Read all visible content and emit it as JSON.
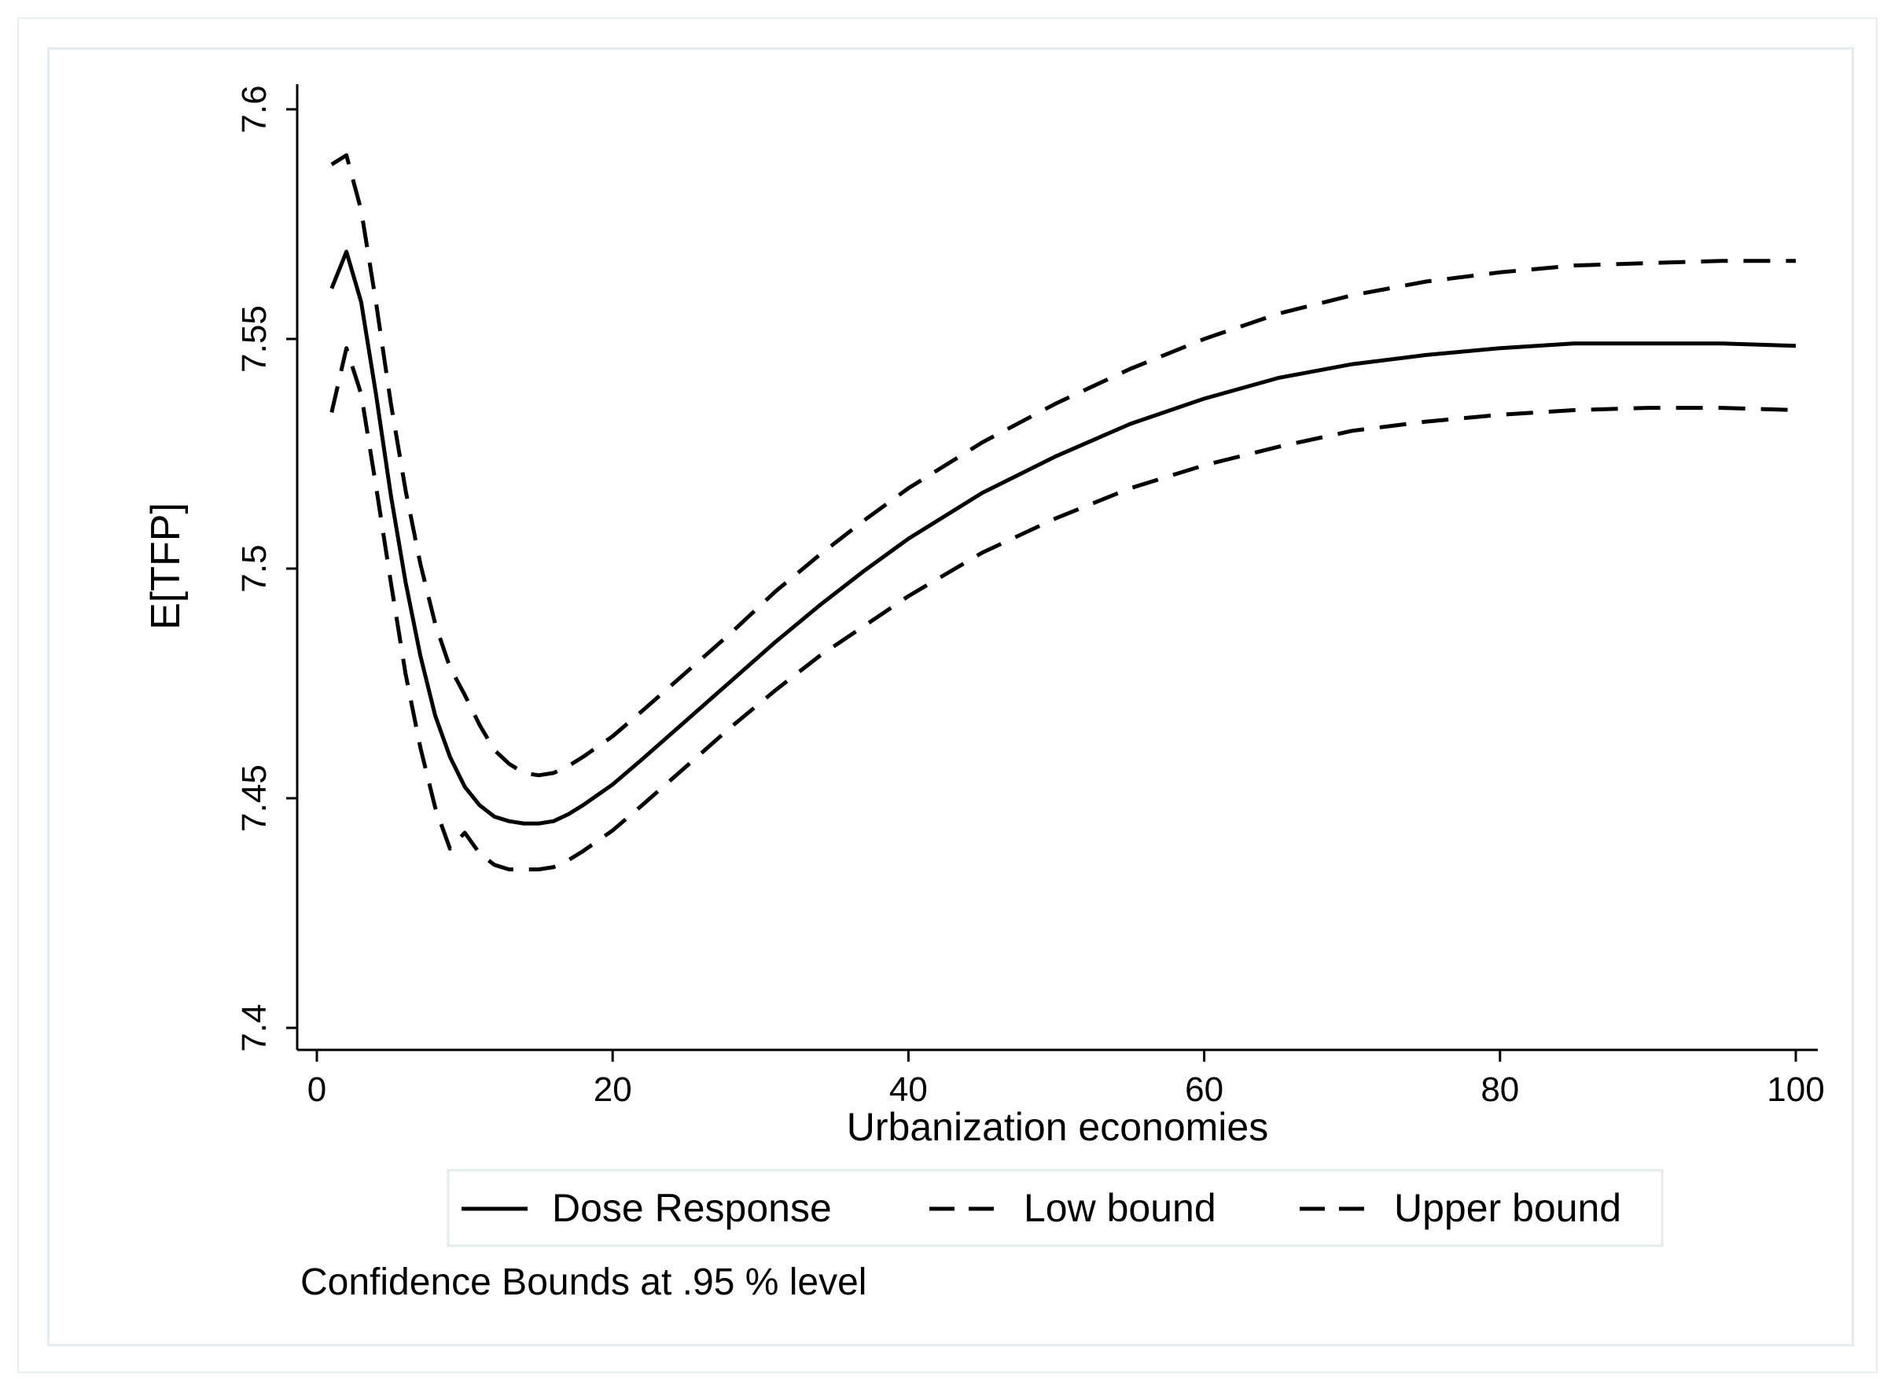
{
  "chart_data": {
    "type": "line",
    "title": "",
    "xlabel": "Urbanization economies",
    "ylabel": "E[TFP]",
    "xlim": [
      0,
      100
    ],
    "ylim": [
      7.4,
      7.6
    ],
    "xticks": [
      "0",
      "20",
      "40",
      "60",
      "80",
      "100"
    ],
    "yticks": [
      "7.4",
      "7.45",
      "7.5",
      "7.55",
      "7.6"
    ],
    "grid": false,
    "legend_position": "bottom",
    "note": "Confidence Bounds at .95 % level",
    "x": [
      1,
      2,
      3,
      4,
      5,
      6,
      7,
      8,
      9,
      10,
      11,
      12,
      13,
      14,
      15,
      16,
      17,
      18,
      20,
      22,
      25,
      28,
      31,
      34,
      37,
      40,
      45,
      50,
      55,
      60,
      65,
      70,
      75,
      80,
      85,
      90,
      95,
      100
    ],
    "series": [
      {
        "name": "Dose Response",
        "style": "solid",
        "values": [
          7.561,
          7.569,
          7.558,
          7.538,
          7.516,
          7.497,
          7.481,
          7.468,
          7.459,
          7.4525,
          7.4485,
          7.446,
          7.445,
          7.4445,
          7.4445,
          7.445,
          7.4465,
          7.4485,
          7.453,
          7.4585,
          7.467,
          7.4755,
          7.484,
          7.492,
          7.4995,
          7.5065,
          7.5165,
          7.5245,
          7.5315,
          7.537,
          7.5415,
          7.5445,
          7.5465,
          7.548,
          7.549,
          7.549,
          7.549,
          7.5485
        ]
      },
      {
        "name": "Low bound",
        "style": "dashed",
        "values": [
          7.534,
          7.548,
          7.538,
          7.518,
          7.497,
          7.477,
          7.461,
          7.448,
          7.439,
          7.4425,
          7.438,
          7.4355,
          7.4345,
          7.4345,
          7.4345,
          7.435,
          7.4365,
          7.4385,
          7.443,
          7.4485,
          7.457,
          7.4655,
          7.4735,
          7.481,
          7.4875,
          7.494,
          7.5035,
          7.511,
          7.5175,
          7.5225,
          7.5265,
          7.53,
          7.532,
          7.5335,
          7.5345,
          7.535,
          7.535,
          7.5345
        ]
      },
      {
        "name": "Upper bound",
        "style": "dashed",
        "values": [
          7.588,
          7.59,
          7.578,
          7.558,
          7.536,
          7.517,
          7.501,
          7.488,
          7.4785,
          7.4725,
          7.466,
          7.4605,
          7.4575,
          7.4555,
          7.455,
          7.4555,
          7.457,
          7.459,
          7.4635,
          7.469,
          7.4775,
          7.486,
          7.495,
          7.503,
          7.5105,
          7.5175,
          7.5275,
          7.536,
          7.5435,
          7.55,
          7.5555,
          7.5595,
          7.5625,
          7.5645,
          7.566,
          7.5665,
          7.567,
          7.567
        ]
      }
    ]
  }
}
